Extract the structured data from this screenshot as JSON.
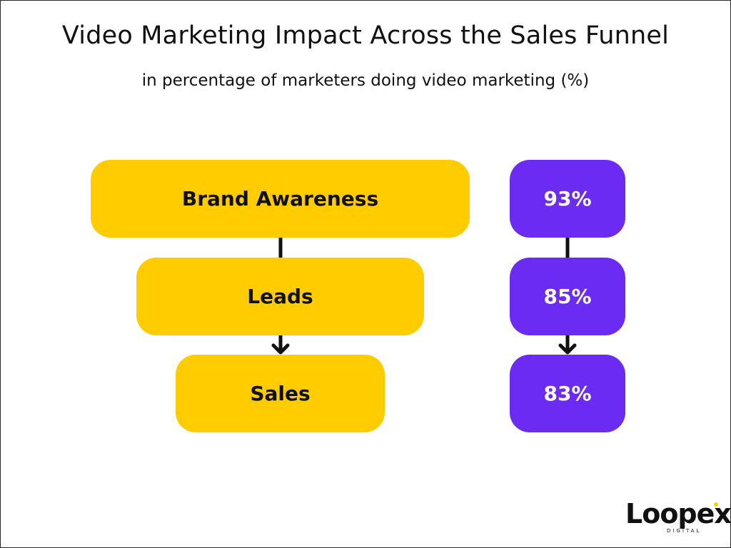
{
  "title": "Video Marketing Impact Across the Sales Funnel",
  "subtitle": "in percentage of marketers doing video marketing (%)",
  "stages": [
    {
      "label": "Brand Awareness",
      "value": "93%"
    },
    {
      "label": "Leads",
      "value": "85%"
    },
    {
      "label": "Sales",
      "value": "83%"
    }
  ],
  "colors": {
    "stage_fill": "#FFCC00",
    "value_fill": "#6B2BF3",
    "connector": "#111111"
  },
  "logo": {
    "brand": "Loopex",
    "sub": "DIGITAL"
  }
}
